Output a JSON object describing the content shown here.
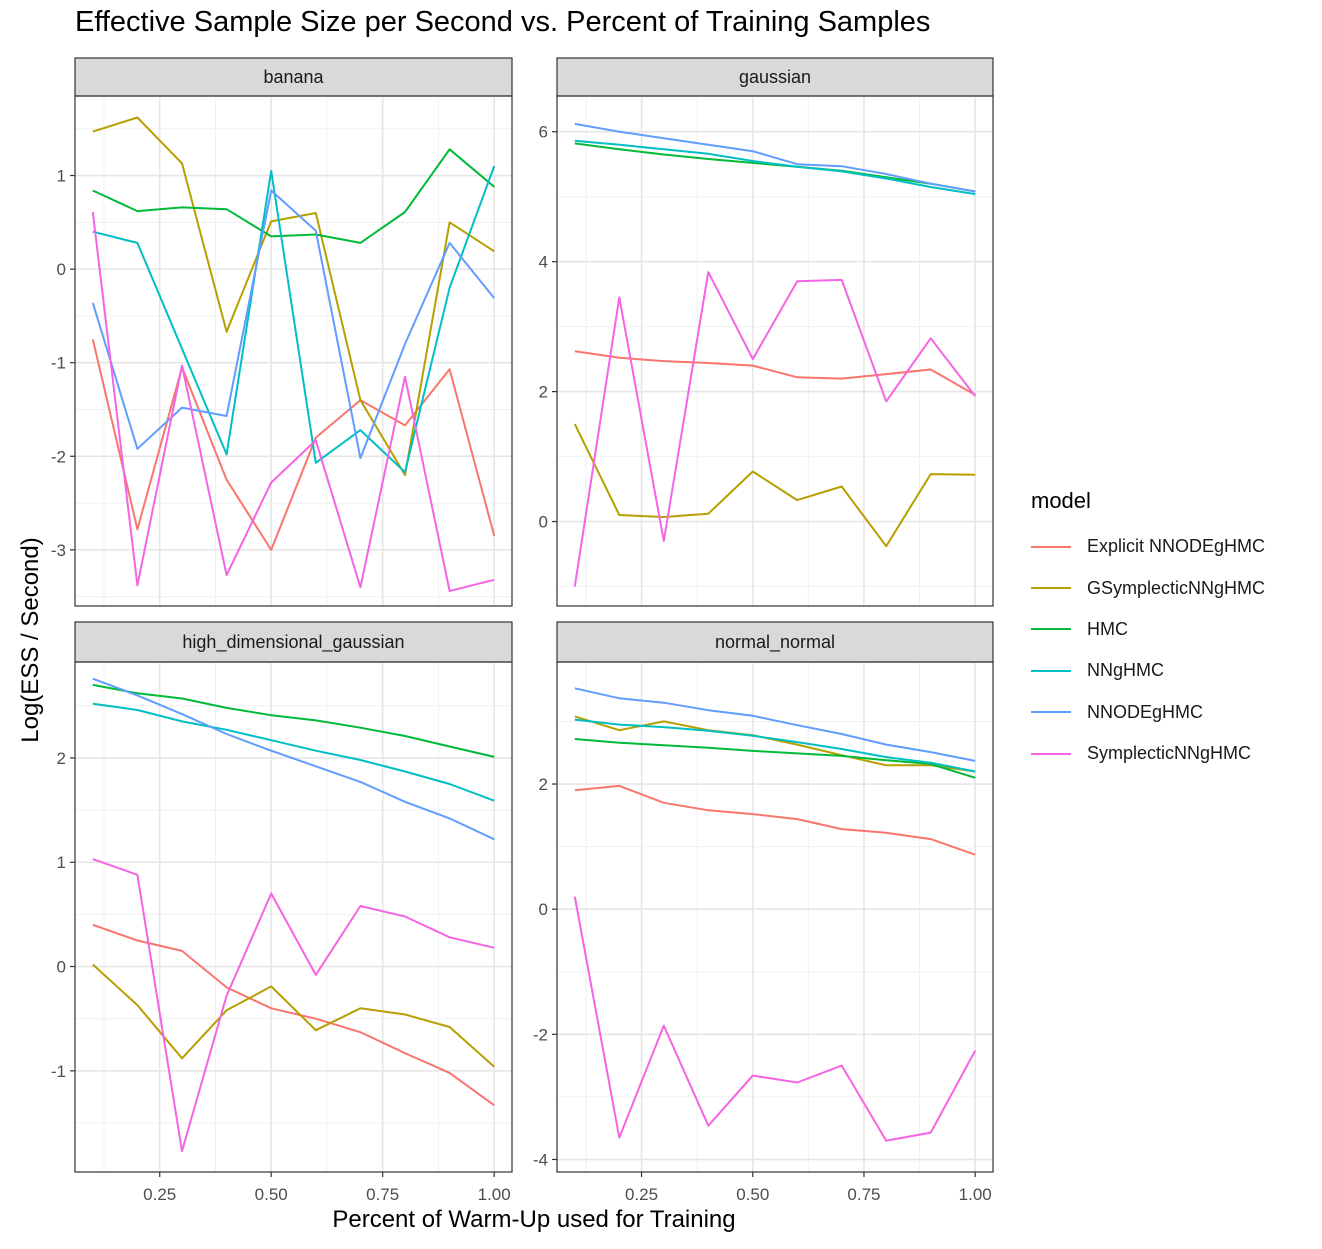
{
  "chart_data": {
    "type": "line",
    "title": "Effective Sample Size per Second vs. Percent of Training Samples",
    "xlabel": "Percent of Warm-Up used for Training",
    "ylabel": "Log(ESS / Second)",
    "legend": {
      "title": "model",
      "placement": "right",
      "entries": [
        "Explicit NNODEgHMC",
        "GSymplecticNNgHMC",
        "HMC",
        "NNgHMC",
        "NNODEgHMC",
        "SymplecticNNgHMC"
      ]
    },
    "colors": {
      "Explicit NNODEgHMC": "#F8766D",
      "GSymplecticNNgHMC": "#B79F00",
      "HMC": "#00BA38",
      "NNgHMC": "#00BFC4",
      "NNODEgHMC": "#619CFF",
      "SymplecticNNgHMC": "#F564E3"
    },
    "x": [
      0.1,
      0.2,
      0.3,
      0.4,
      0.5,
      0.6,
      0.7,
      0.8,
      0.9,
      1.0
    ],
    "xlim": [
      0.06,
      1.04
    ],
    "x_ticks": [
      0.25,
      0.5,
      0.75,
      1.0
    ],
    "x_tick_labels": [
      "0.25",
      "0.50",
      "0.75",
      "1.00"
    ],
    "grid": true,
    "facets": [
      {
        "name": "banana",
        "ylim": [
          -3.6,
          1.85
        ],
        "y_ticks": [
          -3,
          -2,
          -1,
          0,
          1
        ],
        "y_tick_labels": [
          "-3",
          "-2",
          "-1",
          "0",
          "1"
        ],
        "series": [
          {
            "name": "Explicit NNODEgHMC",
            "values": [
              -0.75,
              -2.78,
              -1.05,
              -2.25,
              -3.0,
              -1.8,
              -1.4,
              -1.67,
              -1.07,
              -2.85
            ]
          },
          {
            "name": "GSymplecticNNgHMC",
            "values": [
              1.47,
              1.62,
              1.13,
              -0.67,
              0.51,
              0.6,
              -1.4,
              -2.2,
              0.5,
              0.19
            ]
          },
          {
            "name": "HMC",
            "values": [
              0.84,
              0.62,
              0.66,
              0.64,
              0.35,
              0.37,
              0.28,
              0.61,
              1.28,
              0.88
            ]
          },
          {
            "name": "NNgHMC",
            "values": [
              0.4,
              0.28,
              -0.85,
              -1.98,
              1.05,
              -2.07,
              -1.72,
              -2.17,
              -0.2,
              1.1
            ]
          },
          {
            "name": "NNODEgHMC",
            "values": [
              -0.36,
              -1.92,
              -1.48,
              -1.57,
              0.84,
              0.41,
              -2.02,
              -0.8,
              0.28,
              -0.31
            ]
          },
          {
            "name": "SymplecticNNgHMC",
            "values": [
              0.61,
              -3.38,
              -1.03,
              -3.27,
              -2.28,
              -1.83,
              -3.4,
              -1.15,
              -3.44,
              -3.32
            ]
          }
        ]
      },
      {
        "name": "gaussian",
        "ylim": [
          -1.3,
          6.55
        ],
        "y_ticks": [
          0,
          2,
          4,
          6
        ],
        "y_tick_labels": [
          "0",
          "2",
          "4",
          "6"
        ],
        "series": [
          {
            "name": "Explicit NNODEgHMC",
            "values": [
              2.62,
              2.52,
              2.47,
              2.44,
              2.4,
              2.22,
              2.2,
              2.27,
              2.34,
              1.95
            ]
          },
          {
            "name": "GSymplecticNNgHMC",
            "values": [
              1.5,
              0.1,
              0.07,
              0.12,
              0.77,
              0.33,
              0.54,
              -0.38,
              0.73,
              0.72
            ]
          },
          {
            "name": "HMC",
            "values": [
              5.82,
              5.73,
              5.65,
              5.58,
              5.52,
              5.46,
              5.4,
              5.3,
              5.2,
              5.08
            ]
          },
          {
            "name": "NNgHMC",
            "values": [
              5.86,
              5.8,
              5.73,
              5.66,
              5.55,
              5.46,
              5.39,
              5.28,
              5.15,
              5.04
            ]
          },
          {
            "name": "NNODEgHMC",
            "values": [
              6.12,
              6.0,
              5.9,
              5.8,
              5.7,
              5.5,
              5.47,
              5.35,
              5.2,
              5.08
            ]
          },
          {
            "name": "SymplecticNNgHMC",
            "values": [
              -1.0,
              3.45,
              -0.3,
              3.84,
              2.5,
              3.7,
              3.72,
              1.85,
              2.82,
              1.93
            ]
          }
        ]
      },
      {
        "name": "high_dimensional_gaussian",
        "ylim": [
          -1.97,
          2.92
        ],
        "y_ticks": [
          -1,
          0,
          1,
          2
        ],
        "y_tick_labels": [
          "-1",
          "0",
          "1",
          "2"
        ],
        "series": [
          {
            "name": "Explicit NNODEgHMC",
            "values": [
              0.4,
              0.25,
              0.15,
              -0.2,
              -0.4,
              -0.5,
              -0.63,
              -0.83,
              -1.02,
              -1.33
            ]
          },
          {
            "name": "GSymplecticNNgHMC",
            "values": [
              0.02,
              -0.37,
              -0.88,
              -0.42,
              -0.19,
              -0.61,
              -0.4,
              -0.46,
              -0.58,
              -0.96
            ]
          },
          {
            "name": "HMC",
            "values": [
              2.7,
              2.62,
              2.57,
              2.48,
              2.41,
              2.36,
              2.29,
              2.21,
              2.11,
              2.01
            ]
          },
          {
            "name": "NNgHMC",
            "values": [
              2.52,
              2.46,
              2.35,
              2.27,
              2.17,
              2.07,
              1.98,
              1.87,
              1.75,
              1.59
            ]
          },
          {
            "name": "NNODEgHMC",
            "values": [
              2.76,
              2.6,
              2.42,
              2.23,
              2.07,
              1.92,
              1.77,
              1.58,
              1.42,
              1.22
            ]
          },
          {
            "name": "SymplecticNNgHMC",
            "values": [
              1.03,
              0.88,
              -1.77,
              -0.28,
              0.7,
              -0.08,
              0.58,
              0.48,
              0.28,
              0.18
            ]
          }
        ]
      },
      {
        "name": "normal_normal",
        "ylim": [
          -4.2,
          3.95
        ],
        "y_ticks": [
          -4,
          -2,
          0,
          2
        ],
        "y_tick_labels": [
          "-4",
          "-2",
          "0",
          "2"
        ],
        "series": [
          {
            "name": "Explicit NNODEgHMC",
            "values": [
              1.9,
              1.97,
              1.7,
              1.58,
              1.52,
              1.44,
              1.28,
              1.22,
              1.12,
              0.87
            ]
          },
          {
            "name": "GSymplecticNNgHMC",
            "values": [
              3.08,
              2.86,
              3.0,
              2.86,
              2.78,
              2.63,
              2.46,
              2.3,
              2.3,
              2.2
            ]
          },
          {
            "name": "HMC",
            "values": [
              2.72,
              2.66,
              2.62,
              2.58,
              2.53,
              2.49,
              2.45,
              2.38,
              2.32,
              2.1
            ]
          },
          {
            "name": "NNgHMC",
            "values": [
              3.03,
              2.95,
              2.91,
              2.85,
              2.77,
              2.67,
              2.56,
              2.43,
              2.34,
              2.2
            ]
          },
          {
            "name": "NNODEgHMC",
            "values": [
              3.53,
              3.37,
              3.3,
              3.18,
              3.09,
              2.94,
              2.8,
              2.63,
              2.51,
              2.37
            ]
          },
          {
            "name": "SymplecticNNgHMC",
            "values": [
              0.2,
              -3.65,
              -1.86,
              -3.46,
              -2.66,
              -2.77,
              -2.5,
              -3.7,
              -3.57,
              -2.26
            ]
          }
        ]
      }
    ]
  }
}
